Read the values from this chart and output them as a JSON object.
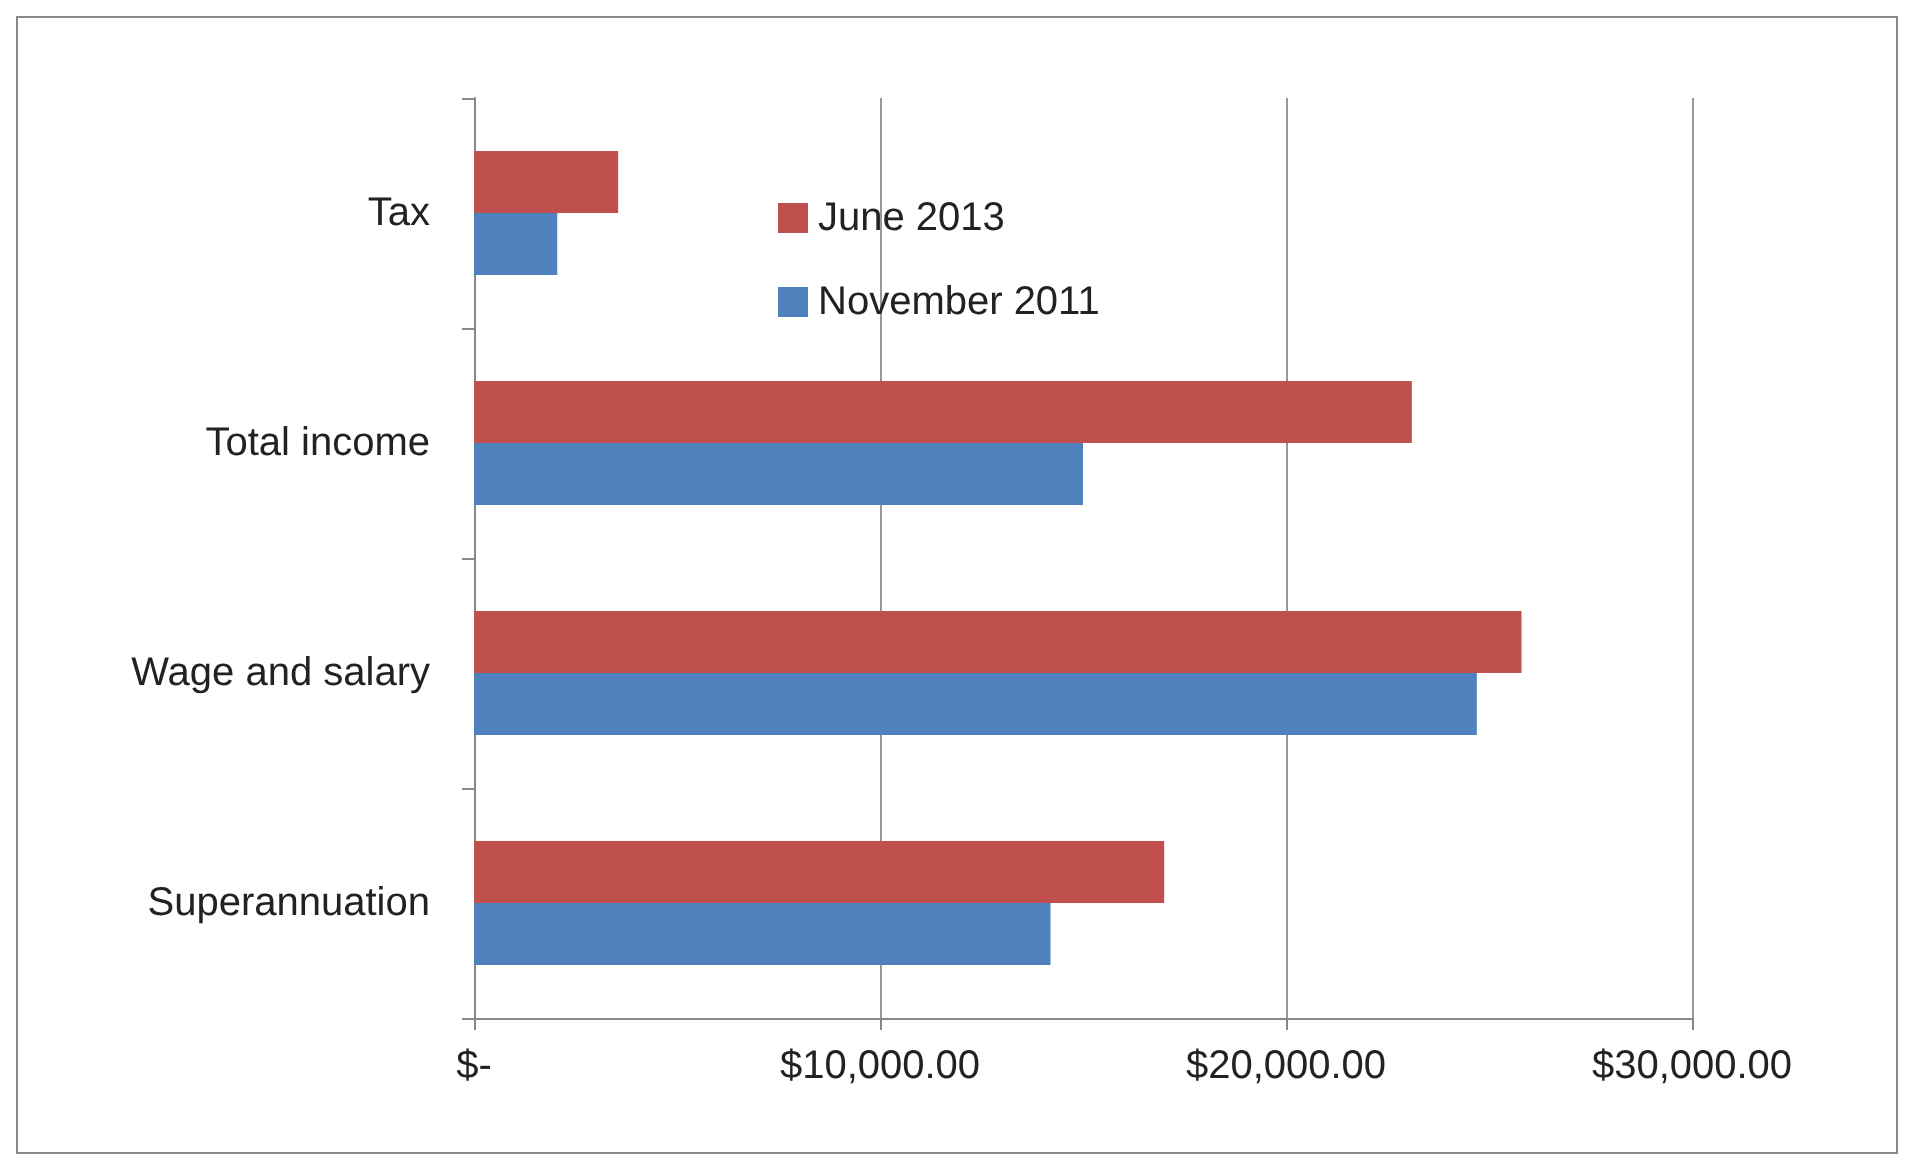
{
  "chart_data": {
    "type": "bar",
    "orientation": "horizontal",
    "categories": [
      "Tax",
      "Total income",
      "Wage and salary",
      "Superannuation"
    ],
    "series": [
      {
        "name": "June 2013",
        "color": "#c0504d",
        "values": [
          3550,
          23100,
          25800,
          17000
        ]
      },
      {
        "name": "November 2011",
        "color": "#4f81bd",
        "values": [
          2050,
          15000,
          24700,
          14200
        ]
      }
    ],
    "xlim": [
      0,
      30000
    ],
    "xticks": [
      {
        "value": 0,
        "label": "$-"
      },
      {
        "value": 10000,
        "label": "$10,000.00"
      },
      {
        "value": 20000,
        "label": "$20,000.00"
      },
      {
        "value": 30000,
        "label": "$30,000.00"
      }
    ],
    "grid": "x",
    "legend": "top"
  }
}
